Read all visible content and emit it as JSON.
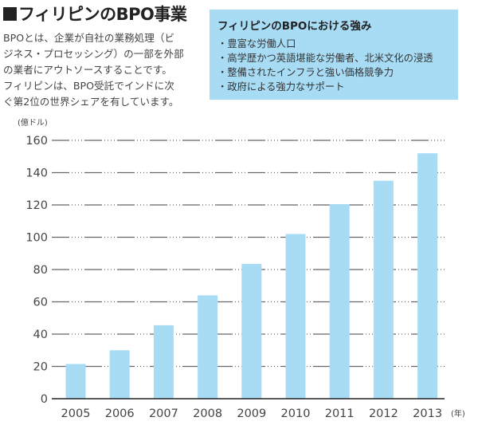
{
  "header": {
    "title": "フィリピンのBPO事業",
    "description_lines": [
      "BPOとは、企業が自社の業務処理（ビ",
      "ジネス・プロセッシング）の一部を外部",
      "の業者にアウトソースすることです。",
      "フィリピンは、BPO受託でインドに次",
      "ぐ第2位の世界シェアを有しています。"
    ]
  },
  "strengths_box": {
    "title": "フィリピンのBPOにおける強み",
    "items": [
      "豊富な労働人口",
      "高学歴かつ英語堪能な労働者、北米文化の浸透",
      "整備されたインフラと強い価格競争力",
      "政府による強力なサポート"
    ],
    "background_color": "#a8dcf5"
  },
  "chart_data": {
    "type": "bar",
    "title": "",
    "categories": [
      "2005",
      "2006",
      "2007",
      "2008",
      "2009",
      "2010",
      "2011",
      "2012",
      "2013"
    ],
    "values": [
      21.5,
      30,
      45.5,
      64,
      83.5,
      102,
      120.5,
      135,
      152
    ],
    "xlabel": "(年)",
    "ylabel": "(億ドル)",
    "ylim": [
      0,
      160
    ],
    "yticks": [
      0,
      20,
      40,
      60,
      80,
      100,
      120,
      140,
      160
    ],
    "grid": true,
    "bar_color": "#a8dcf5",
    "legend": "none"
  }
}
